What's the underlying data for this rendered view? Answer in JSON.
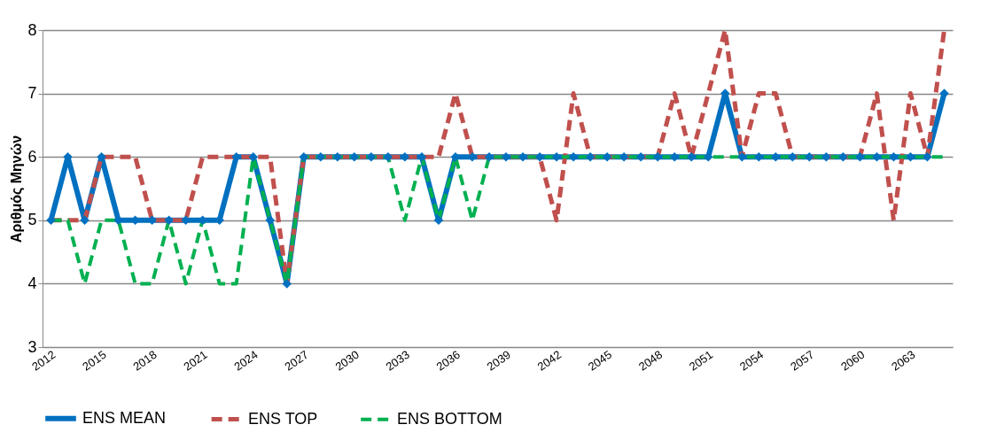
{
  "chart_data": {
    "type": "line",
    "ylabel": "Αριθμός Μηνών",
    "categories": [
      "2012",
      null,
      null,
      "2015",
      null,
      null,
      "2018",
      null,
      null,
      "2021",
      null,
      null,
      "2024",
      null,
      null,
      "2027",
      null,
      null,
      "2030",
      null,
      null,
      "2033",
      null,
      null,
      "2036",
      null,
      null,
      "2039",
      null,
      null,
      "2042",
      null,
      null,
      "2045",
      null,
      null,
      "2048",
      null,
      null,
      "2051",
      null,
      null,
      "2054",
      null,
      null,
      "2057",
      null,
      null,
      "2060",
      null,
      null,
      "2063",
      null,
      null
    ],
    "series": [
      {
        "name": "ENS MEAN",
        "color": "#0070c0",
        "marker": "diamond",
        "line_style": "solid",
        "values": [
          5,
          6,
          5,
          6,
          5,
          5,
          5,
          5,
          5,
          5,
          5,
          6,
          6,
          5,
          4,
          6,
          6,
          6,
          6,
          6,
          6,
          6,
          6,
          5,
          6,
          6,
          6,
          6,
          6,
          6,
          6,
          6,
          6,
          6,
          6,
          6,
          6,
          6,
          6,
          6,
          7,
          6,
          6,
          6,
          6,
          6,
          6,
          6,
          6,
          6,
          6,
          6,
          6,
          7
        ]
      },
      {
        "name": "ENS TOP",
        "color": "#c0504d",
        "marker": "none",
        "line_style": "dashed",
        "values": [
          5,
          5,
          5,
          6,
          6,
          6,
          5,
          5,
          5,
          6,
          6,
          6,
          6,
          6,
          4,
          6,
          6,
          6,
          6,
          6,
          6,
          6,
          6,
          6,
          7,
          6,
          6,
          6,
          6,
          6,
          5,
          7,
          6,
          6,
          6,
          6,
          6,
          7,
          6,
          7,
          8,
          6,
          7,
          7,
          6,
          6,
          6,
          6,
          6,
          7,
          5,
          7,
          6,
          8
        ]
      },
      {
        "name": "ENS BOTTOM",
        "color": "#00b050",
        "marker": "none",
        "line_style": "dashed",
        "values": [
          5,
          5,
          4,
          5,
          5,
          4,
          4,
          5,
          4,
          5,
          4,
          4,
          6,
          5,
          4,
          6,
          6,
          6,
          6,
          6,
          6,
          5,
          6,
          5,
          6,
          5,
          6,
          6,
          6,
          6,
          6,
          6,
          6,
          6,
          6,
          6,
          6,
          6,
          6,
          6,
          6,
          6,
          6,
          6,
          6,
          6,
          6,
          6,
          6,
          6,
          6,
          6,
          6,
          6
        ]
      }
    ],
    "ylim": [
      3,
      8
    ],
    "yticks": [
      3,
      4,
      5,
      6,
      7,
      8
    ],
    "grid": "y",
    "legend": "bottom"
  }
}
